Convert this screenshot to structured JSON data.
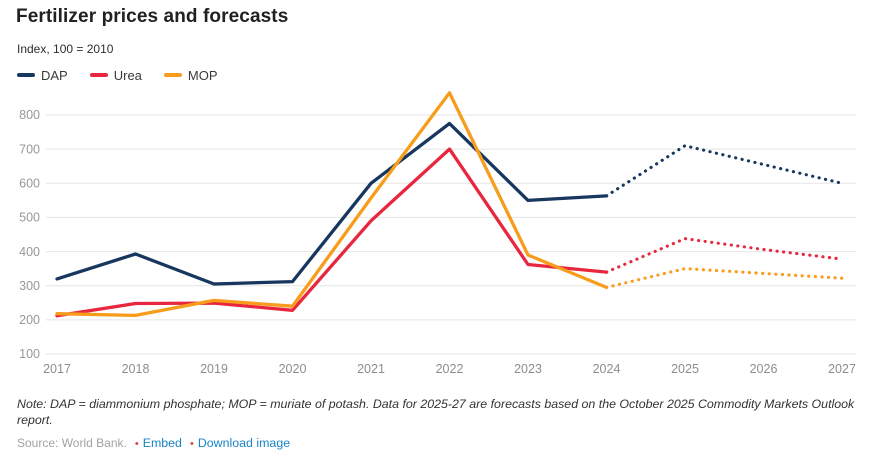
{
  "header": {
    "title": "Fertilizer prices and forecasts",
    "subtitle": "Index, 100 = 2010"
  },
  "chart_data": {
    "type": "line",
    "x": [
      2017,
      2018,
      2019,
      2020,
      2021,
      2022,
      2023,
      2024,
      2025,
      2026,
      2027
    ],
    "series": [
      {
        "name": "DAP",
        "color": "#17375e",
        "values": [
          320,
          393,
          305,
          312,
          600,
          775,
          550,
          563,
          710,
          655,
          600
        ],
        "forecast_from": 2024
      },
      {
        "name": "Urea",
        "color": "#e8273f",
        "values": [
          212,
          248,
          249,
          228,
          490,
          700,
          362,
          340,
          438,
          406,
          378
        ],
        "forecast_from": 2024
      },
      {
        "name": "MOP",
        "color": "#f89c1c",
        "values": [
          218,
          213,
          257,
          240,
          557,
          865,
          390,
          295,
          350,
          336,
          322
        ],
        "forecast_from": 2024
      }
    ],
    "title": "Fertilizer prices and forecasts",
    "subtitle": "Index, 100 = 2010",
    "xlabel": "",
    "ylabel": "",
    "ylim": [
      100,
      800
    ],
    "yticks": [
      100,
      200,
      300,
      400,
      500,
      600,
      700,
      800
    ],
    "grid": true,
    "legend_position": "top-left",
    "forecast_style": "dotted",
    "forecast_note": "2025-27 values are forecasts shown as dotted lines",
    "grid_color": "#e5e5e5",
    "tick_color": "#979797"
  },
  "footer": {
    "note": "Note: DAP = diammonium phosphate; MOP = muriate of potash. Data for 2025-27 are forecasts based on the October 2025 Commodity Markets Outlook report.",
    "source": "Source: World Bank.",
    "bullet": "•",
    "links": [
      {
        "label": "Embed"
      },
      {
        "label": "Download image"
      }
    ],
    "link_color": "#1a85c7"
  }
}
